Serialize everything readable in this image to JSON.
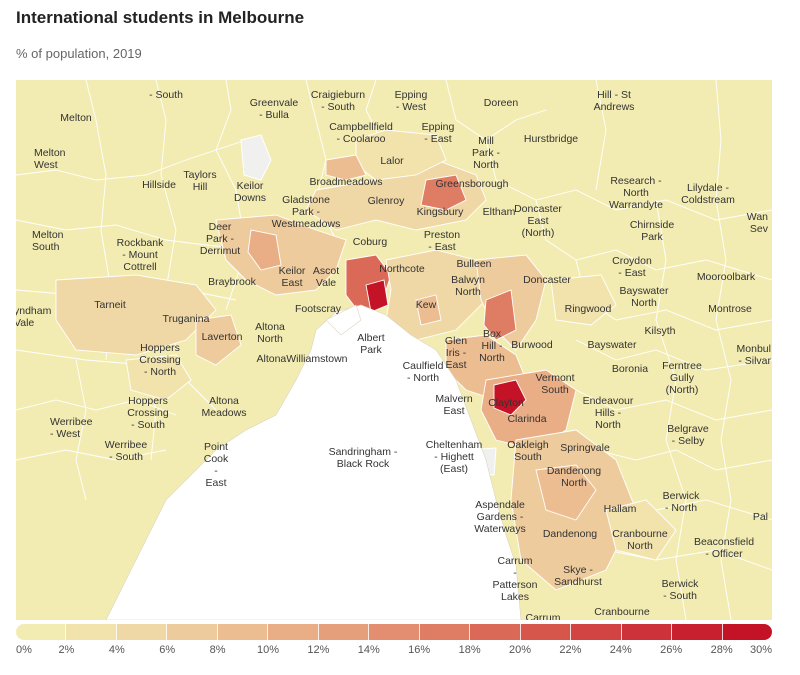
{
  "title": "International students in Melbourne",
  "subtitle": "% of population, 2019",
  "legend": {
    "ticks": [
      "0%",
      "2%",
      "4%",
      "6%",
      "8%",
      "10%",
      "12%",
      "14%",
      "16%",
      "18%",
      "20%",
      "22%",
      "24%",
      "26%",
      "28%",
      "30%"
    ],
    "colors": [
      "#f3ecb2",
      "#f2e3ad",
      "#f0d7a6",
      "#eecb9c",
      "#ecbd91",
      "#e9ae86",
      "#e69f7b",
      "#e38e70",
      "#df7c64",
      "#db6958",
      "#d6564c",
      "#d24443",
      "#cd3139",
      "#c8202f",
      "#c41326"
    ]
  },
  "labels": [
    {
      "text": "- South"
    },
    {
      "text": "Melton"
    },
    {
      "text": "Greenvale - Bulla"
    },
    {
      "text": "Craigieburn - South"
    },
    {
      "text": "Epping - West"
    },
    {
      "text": "Doreen"
    },
    {
      "text": "Hill - St Andrews"
    },
    {
      "text": "Campbellfield - Coolaroo"
    },
    {
      "text": "Epping - East"
    },
    {
      "text": "Mill Park - North"
    },
    {
      "text": "Hurstbridge"
    },
    {
      "text": "Melton West"
    },
    {
      "text": "Hillside"
    },
    {
      "text": "Taylors Hill"
    },
    {
      "text": "Keilor Downs"
    },
    {
      "text": "Lalor"
    },
    {
      "text": "Broadmeadows"
    },
    {
      "text": "Greensborough"
    },
    {
      "text": "Research - North Warrandyte"
    },
    {
      "text": "Lilydale - Coldstream"
    },
    {
      "text": "Gladstone Park - Westmeadows"
    },
    {
      "text": "Glenroy"
    },
    {
      "text": "Kingsbury"
    },
    {
      "text": "Eltham"
    },
    {
      "text": "Doncaster East (North)"
    },
    {
      "text": "Chirnside Park"
    },
    {
      "text": "Melton South"
    },
    {
      "text": "Rockbank - Mount Cottrell"
    },
    {
      "text": "Deer Park - Derrimut"
    },
    {
      "text": "Coburg"
    },
    {
      "text": "Preston - East"
    },
    {
      "text": "Bulleen"
    },
    {
      "text": "Croydon - East"
    },
    {
      "text": "Keilor East"
    },
    {
      "text": "Ascot Vale"
    },
    {
      "text": "Northcote"
    },
    {
      "text": "Balwyn North"
    },
    {
      "text": "Doncaster"
    },
    {
      "text": "Mooroolbark"
    },
    {
      "text": "Braybrook"
    },
    {
      "text": "Bayswater North"
    },
    {
      "text": "Montrose"
    },
    {
      "text": "Tarneit"
    },
    {
      "text": "Footscray"
    },
    {
      "text": "Kew"
    },
    {
      "text": "Ringwood"
    },
    {
      "text": "Truganina"
    },
    {
      "text": "Altona North"
    },
    {
      "text": "Laverton"
    },
    {
      "text": "Albert Park"
    },
    {
      "text": "Box Hill - North"
    },
    {
      "text": "Kilsyth"
    },
    {
      "text": "Hoppers Crossing - North"
    },
    {
      "text": "AltonaWilliamstown"
    },
    {
      "text": "Glen Iris - East"
    },
    {
      "text": "Burwood"
    },
    {
      "text": "Bayswater"
    },
    {
      "text": "Caulfield - North"
    },
    {
      "text": "Boronia"
    },
    {
      "text": "Ferntree Gully (North)"
    },
    {
      "text": "Vermont South"
    },
    {
      "text": "Werribee - West"
    },
    {
      "text": "Hoppers Crossing - South"
    },
    {
      "text": "Altona Meadows"
    },
    {
      "text": "Malvern East"
    },
    {
      "text": "Clayton"
    },
    {
      "text": "Endeavour Hills - North"
    },
    {
      "text": "Clarinda"
    },
    {
      "text": "Belgrave - Selby"
    },
    {
      "text": "Werribee - South"
    },
    {
      "text": "Point Cook - East"
    },
    {
      "text": "Sandringham - Black Rock"
    },
    {
      "text": "Cheltenham - Highett (East)"
    },
    {
      "text": "Oakleigh South"
    },
    {
      "text": "Springvale"
    },
    {
      "text": "Dandenong North"
    },
    {
      "text": "Berwick - North"
    },
    {
      "text": "Hallam"
    },
    {
      "text": "Aspendale Gardens - Waterways"
    },
    {
      "text": "Dandenong"
    },
    {
      "text": "Cranbourne North"
    },
    {
      "text": "Beaconsfield - Officer"
    },
    {
      "text": "Carrum - Patterson Lakes"
    },
    {
      "text": "Skye - Sandhurst"
    },
    {
      "text": "Berwick - South"
    },
    {
      "text": "Cranbourne"
    },
    {
      "text": "Carrum"
    },
    {
      "text": "Monbulk - Silvan"
    },
    {
      "text": "yndham Vale"
    },
    {
      "text": "Wan Sev"
    },
    {
      "text": "Pal"
    }
  ]
}
